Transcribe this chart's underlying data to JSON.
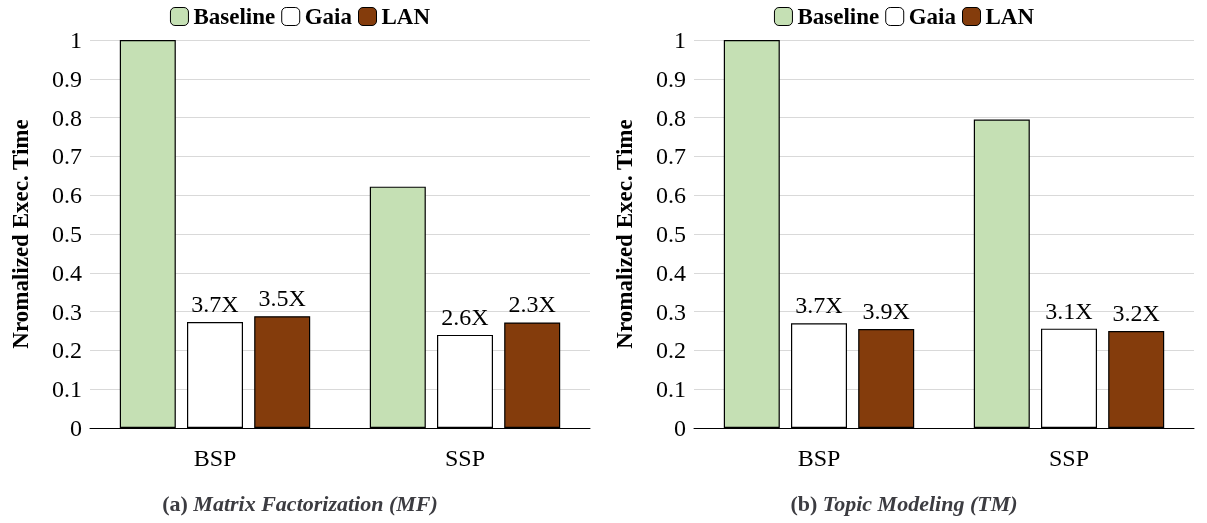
{
  "chart_data": [
    {
      "type": "bar",
      "title": "(a) Matrix Factorization (MF)",
      "ylabel": "Nromalized Exec. Time",
      "categories": [
        "BSP",
        "SSP"
      ],
      "series": [
        {
          "name": "Baseline",
          "color": "#c5e0b4",
          "values": [
            1,
            0.622
          ]
        },
        {
          "name": "Gaia",
          "color": "#ffffff",
          "values": [
            0.273,
            0.24
          ]
        },
        {
          "name": "LAN",
          "color": "#843c0c",
          "values": [
            0.288,
            0.272
          ]
        }
      ],
      "annotations": [
        "3.7X",
        "3.5X",
        "2.6X",
        "2.3X"
      ],
      "ylim": [
        0,
        1
      ],
      "yticks": [
        0,
        0.1,
        0.2,
        0.3,
        0.4,
        0.5,
        0.6,
        0.7,
        0.8,
        0.9,
        1
      ],
      "grid": "y",
      "legend": "top"
    },
    {
      "type": "bar",
      "title": "(b) Topic Modeling (TM)",
      "ylabel": "Nromalized Exec. Time",
      "categories": [
        "BSP",
        "SSP"
      ],
      "series": [
        {
          "name": "Baseline",
          "color": "#c5e0b4",
          "values": [
            1,
            0.795
          ]
        },
        {
          "name": "Gaia",
          "color": "#ffffff",
          "values": [
            0.27,
            0.256
          ]
        },
        {
          "name": "LAN",
          "color": "#843c0c",
          "values": [
            0.255,
            0.25
          ]
        }
      ],
      "annotations": [
        "3.7X",
        "3.9X",
        "3.1X",
        "3.2X"
      ],
      "ylim": [
        0,
        1
      ],
      "yticks": [
        0,
        0.1,
        0.2,
        0.3,
        0.4,
        0.5,
        0.6,
        0.7,
        0.8,
        0.9,
        1
      ],
      "grid": "y",
      "legend": "top"
    }
  ]
}
